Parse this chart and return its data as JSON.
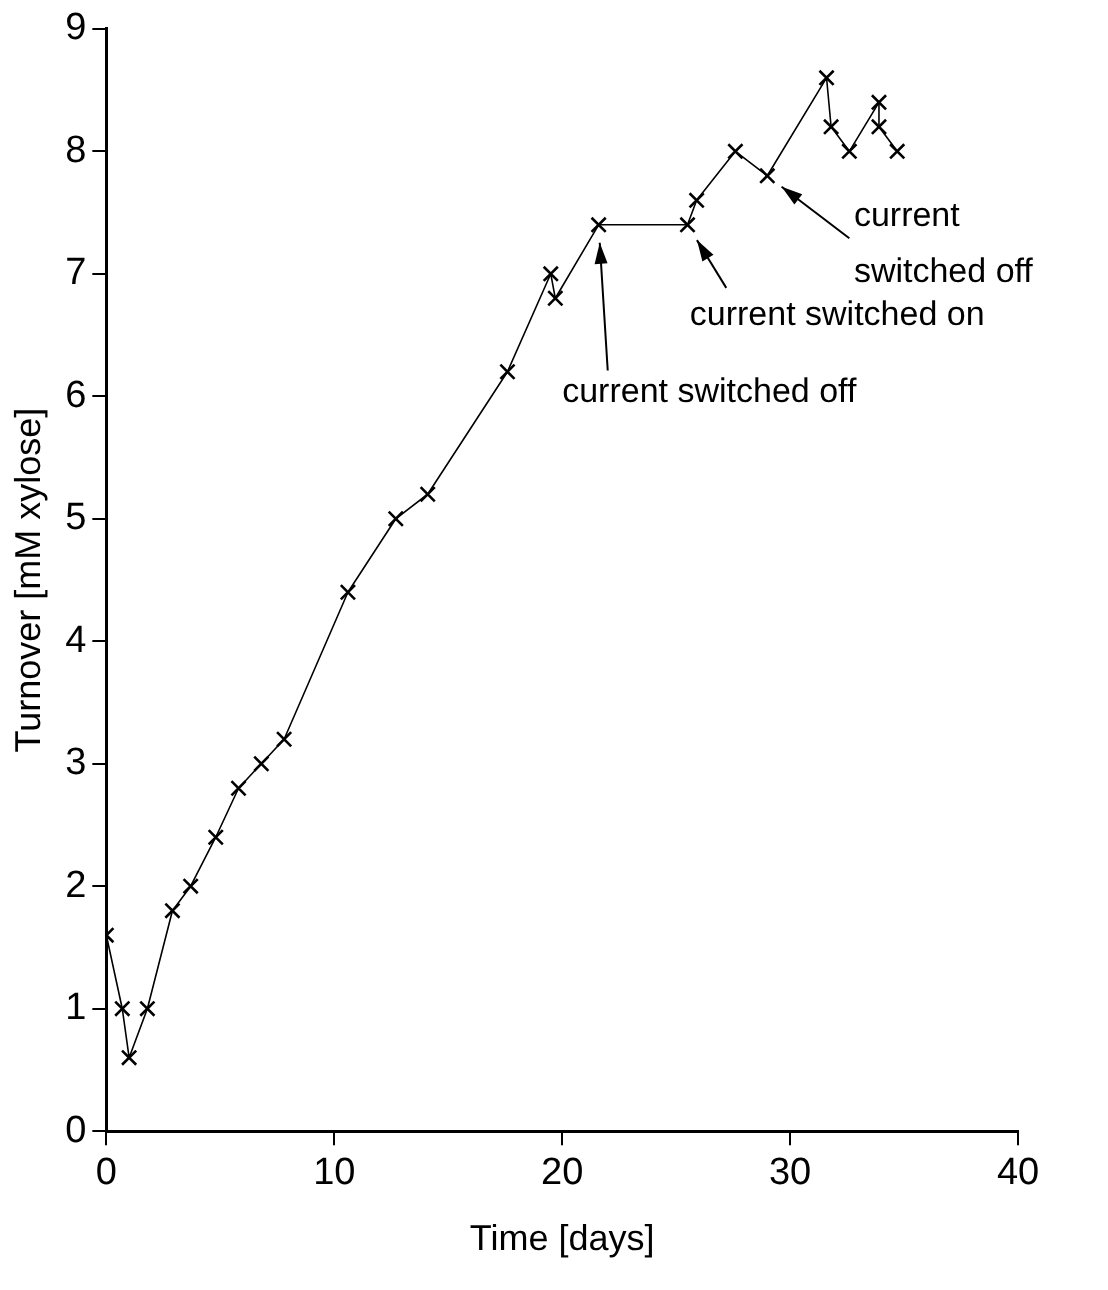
{
  "chart_data": {
    "type": "line",
    "xlabel": "Time [days]",
    "ylabel": "Turnover [mM xylose]",
    "x": [
      0,
      0.7,
      1.0,
      1.8,
      2.9,
      3.7,
      4.8,
      5.8,
      6.8,
      7.8,
      10.6,
      12.7,
      14.1,
      17.6,
      19.5,
      19.7,
      21.6,
      25.5,
      25.9,
      27.6,
      29.0,
      31.6,
      31.8,
      32.6,
      33.9,
      33.9,
      34.7
    ],
    "series": [
      {
        "color": "#000000",
        "values": [
          1.6,
          1.0,
          0.6,
          1.0,
          1.8,
          2.0,
          2.4,
          2.8,
          3.0,
          3.2,
          4.4,
          5.0,
          5.2,
          6.2,
          7.0,
          6.8,
          7.4,
          7.4,
          7.6,
          8.0,
          7.8,
          8.6,
          8.2,
          8.0,
          8.4,
          8.2,
          8.0
        ]
      }
    ],
    "xlim": [
      0,
      40
    ],
    "xticks": [
      0,
      10,
      20,
      30,
      40
    ],
    "ylim": [
      0,
      9
    ],
    "yticks": [
      0,
      1,
      2,
      3,
      4,
      5,
      6,
      7,
      8,
      9
    ],
    "marker": "cross",
    "line_style": "solid",
    "grid": false,
    "legend": false,
    "annotations": [
      {
        "text": "current switched off",
        "x": 21.6,
        "y": 7.4
      },
      {
        "text": "current switched on",
        "x": 25.5,
        "y": 7.4
      },
      {
        "text": "current switched off",
        "x": 29.0,
        "y": 7.8
      }
    ]
  }
}
